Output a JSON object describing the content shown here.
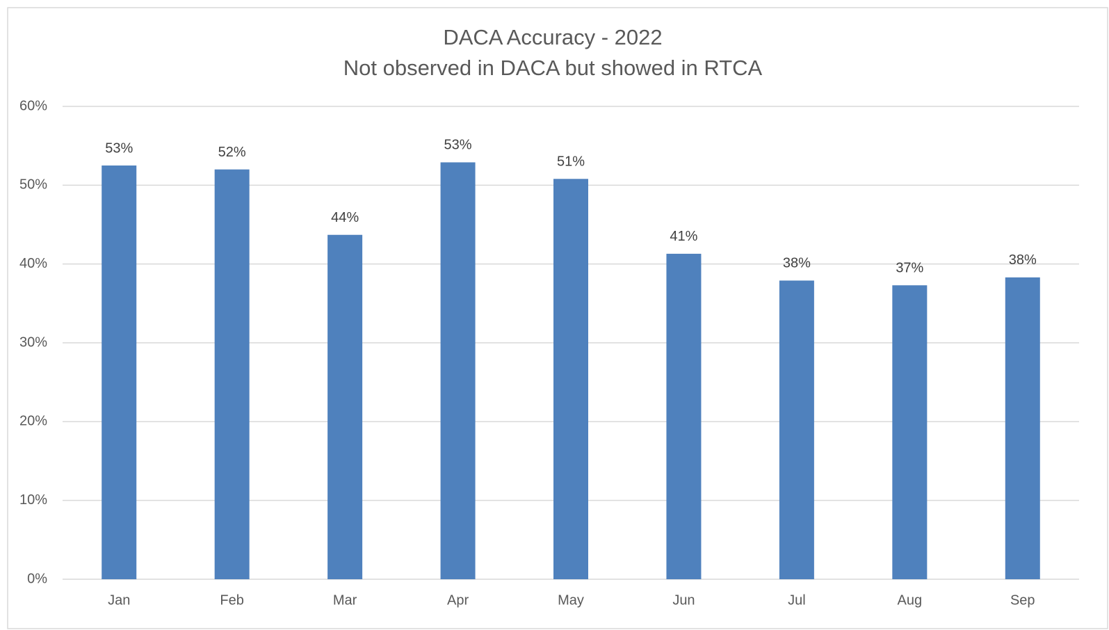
{
  "chart_data": {
    "type": "bar",
    "title": "DACA Accuracy - 2022",
    "subtitle": "Not observed in DACA but showed in RTCA",
    "categories": [
      "Jan",
      "Feb",
      "Mar",
      "Apr",
      "May",
      "Jun",
      "Jul",
      "Aug",
      "Sep"
    ],
    "values": [
      52.5,
      52.0,
      43.7,
      52.9,
      50.8,
      41.3,
      37.9,
      37.3,
      38.3
    ],
    "value_labels": [
      "53%",
      "52%",
      "44%",
      "53%",
      "51%",
      "41%",
      "38%",
      "37%",
      "38%"
    ],
    "color": "#4f81bd",
    "ylim": [
      0,
      60
    ],
    "yticks": [
      {
        "value": 0,
        "label": "0%"
      },
      {
        "value": 10,
        "label": "10%"
      },
      {
        "value": 20,
        "label": "20%"
      },
      {
        "value": 30,
        "label": "30%"
      },
      {
        "value": 40,
        "label": "40%"
      },
      {
        "value": 50,
        "label": "50%"
      },
      {
        "value": 60,
        "label": "60%"
      }
    ],
    "grid": true
  }
}
